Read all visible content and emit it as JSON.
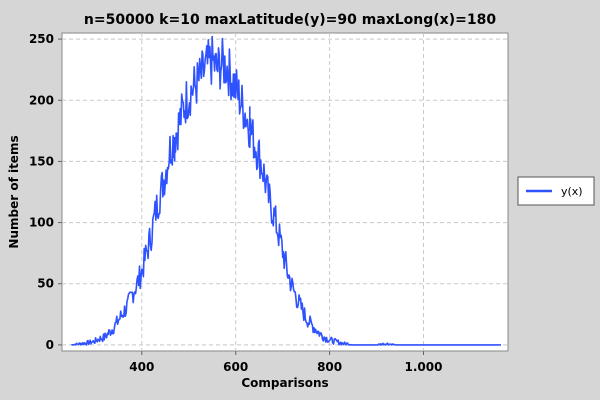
{
  "chart_data": {
    "type": "line",
    "title": "n=50000 k=10 maxLatitude(y)=90 maxLong(x)=180",
    "xlabel": "Comparisons",
    "ylabel": "Number of items",
    "xlim": [
      230,
      1180
    ],
    "ylim": [
      -5,
      255
    ],
    "xticks": [
      400,
      600,
      800,
      1000
    ],
    "xtick_labels": [
      "400",
      "600",
      "800",
      "1.000"
    ],
    "yticks": [
      0,
      50,
      100,
      150,
      200,
      250
    ],
    "ytick_labels": [
      "0",
      "50",
      "100",
      "150",
      "200",
      "250"
    ],
    "grid": true,
    "legend_position": "right",
    "series": [
      {
        "name": "y(x)",
        "color": "#2f52ff",
        "x": [
          250,
          270,
          290,
          300,
          310,
          320,
          330,
          340,
          350,
          360,
          370,
          380,
          390,
          400,
          410,
          420,
          430,
          440,
          450,
          460,
          470,
          480,
          490,
          500,
          510,
          520,
          530,
          540,
          550,
          560,
          570,
          580,
          590,
          600,
          610,
          620,
          630,
          640,
          650,
          660,
          670,
          680,
          690,
          700,
          710,
          720,
          730,
          740,
          750,
          760,
          770,
          780,
          790,
          800,
          810,
          820,
          830,
          840,
          850,
          860,
          870,
          880,
          900,
          920,
          940,
          960,
          1000,
          1050,
          1100,
          1165
        ],
        "y": [
          0,
          1,
          2,
          3,
          5,
          6,
          10,
          14,
          20,
          26,
          32,
          42,
          50,
          60,
          75,
          90,
          110,
          125,
          140,
          160,
          170,
          182,
          195,
          205,
          210,
          215,
          222,
          228,
          232,
          225,
          230,
          228,
          220,
          210,
          200,
          190,
          178,
          165,
          155,
          140,
          120,
          108,
          93,
          77,
          60,
          48,
          38,
          30,
          22,
          17,
          13,
          9,
          6,
          4,
          3,
          2,
          1,
          1,
          0,
          0,
          0,
          0,
          0,
          1,
          0,
          0,
          0,
          0,
          0,
          0
        ],
        "peak_annotations": [
          {
            "x": 550,
            "y": 252
          },
          {
            "x": 470,
            "y": 170
          },
          {
            "x": 630,
            "y": 195
          }
        ]
      }
    ]
  }
}
